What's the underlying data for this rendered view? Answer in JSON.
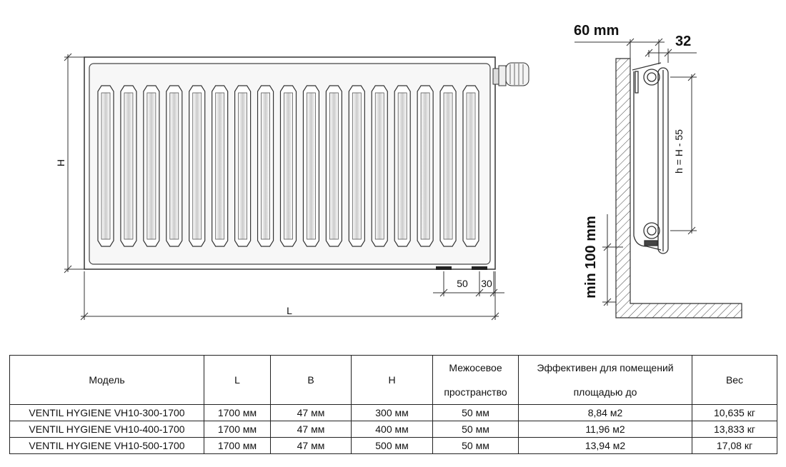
{
  "front_view": {
    "height_label": "H",
    "length_label": "L",
    "spacing_label": "50",
    "offset_label": "30",
    "fin_count": 17
  },
  "side_view": {
    "depth_label": "60 mm",
    "width_label": "32",
    "floor_gap_label": "min 100 mm",
    "axis_label": "h = H - 55"
  },
  "table": {
    "headers": {
      "model": "Модель",
      "L": "L",
      "B": "B",
      "H": "H",
      "spacing_1": "Межосевое",
      "spacing_2": "пространство",
      "area_1": "Эффективен для помещений",
      "area_2": "площадью до",
      "weight": "Вес"
    },
    "rows": [
      {
        "model": "VENTIL HYGIENE VH10-300-1700",
        "L": "1700 мм",
        "B": "47 мм",
        "H": "300 мм",
        "spacing": "50 мм",
        "area": "8,84 м2",
        "weight": "10,635 кг"
      },
      {
        "model": "VENTIL HYGIENE VH10-400-1700",
        "L": "1700 мм",
        "B": "47 мм",
        "H": "400 мм",
        "spacing": "50 мм",
        "area": "11,96 м2",
        "weight": "13,833 кг"
      },
      {
        "model": "VENTIL HYGIENE VH10-500-1700",
        "L": "1700 мм",
        "B": "47 мм",
        "H": "500 мм",
        "spacing": "50 мм",
        "area": "13,94 м2",
        "weight": "17,08 кг"
      }
    ]
  }
}
